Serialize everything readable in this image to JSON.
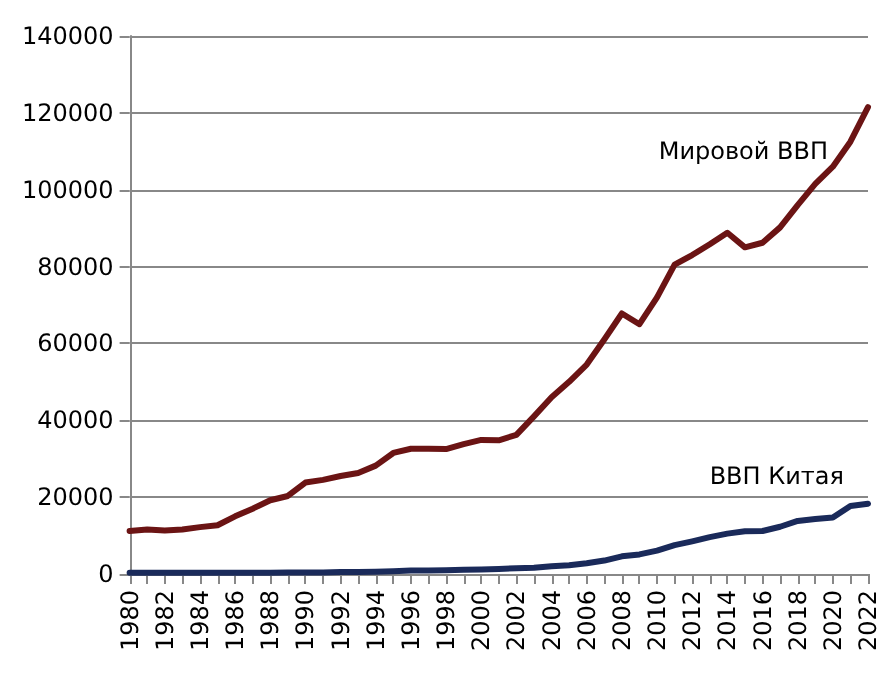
{
  "chart_data": {
    "type": "line",
    "categories": [
      "1980",
      null,
      "1982",
      null,
      "1984",
      null,
      "1986",
      null,
      "1988",
      null,
      "1990",
      null,
      "1992",
      null,
      "1994",
      null,
      "1996",
      null,
      "1998",
      null,
      "2000",
      null,
      "2002",
      null,
      "2004",
      null,
      "2006",
      null,
      "2008",
      null,
      "2010",
      null,
      "2012",
      null,
      "2014",
      null,
      "2016",
      null,
      "2018",
      null,
      "2020",
      null,
      "2022"
    ],
    "series": [
      {
        "name": "Мировой ВВП",
        "color": "#6b1414",
        "values": [
          11200,
          11600,
          11300,
          11600,
          12200,
          12700,
          15000,
          17000,
          19200,
          20300,
          23800,
          24500,
          25500,
          26300,
          28200,
          31500,
          32600,
          32600,
          32500,
          33800,
          34900,
          34800,
          36200,
          41000,
          46000,
          50000,
          54500,
          61000,
          67800,
          65000,
          72000,
          80500,
          83000,
          85800,
          88800,
          85000,
          86200,
          90200,
          96000,
          101500,
          106000,
          112500,
          121500
        ]
      },
      {
        "name": "ВВП Китая",
        "color": "#1a2a5a",
        "values": [
          300,
          300,
          300,
          300,
          300,
          300,
          300,
          300,
          300,
          400,
          400,
          400,
          500,
          500,
          600,
          700,
          900,
          900,
          1000,
          1100,
          1200,
          1300,
          1500,
          1600,
          2000,
          2300,
          2800,
          3500,
          4600,
          5100,
          6100,
          7500,
          8500,
          9600,
          10500,
          11100,
          11200,
          12300,
          13800,
          14300,
          14700,
          17700,
          18300
        ]
      }
    ],
    "ylim": [
      0,
      140000
    ],
    "yticks": [
      0,
      20000,
      40000,
      60000,
      80000,
      100000,
      120000,
      140000
    ],
    "grid": "y",
    "legend": false,
    "marker": "none",
    "line_style": "solid"
  }
}
